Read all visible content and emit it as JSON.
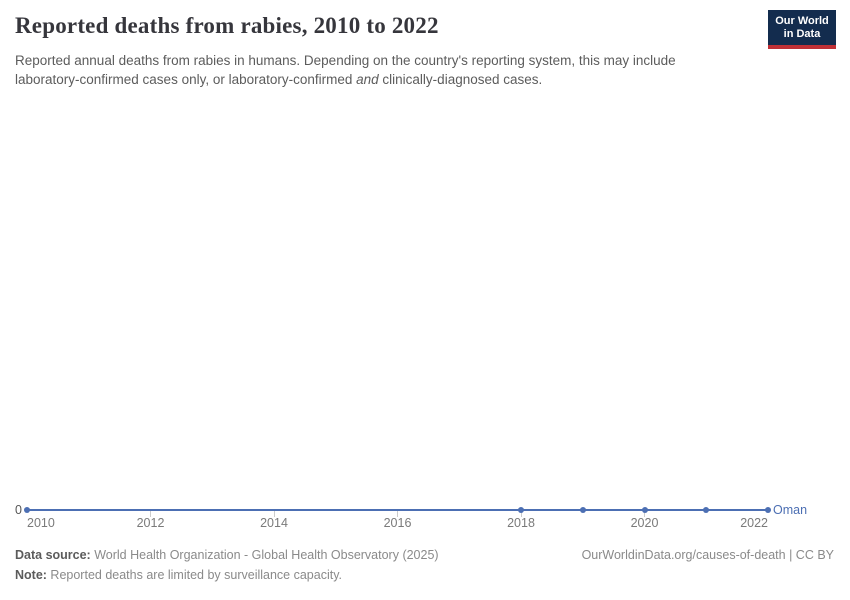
{
  "header": {
    "title": "Reported deaths from rabies, 2010 to 2022",
    "subtitle_line1": "Reported annual deaths from rabies in humans. Depending on the country's reporting system, this may include",
    "subtitle_line2_pre": "laboratory-confirmed cases only, or laboratory-confirmed ",
    "subtitle_line2_italic": "and",
    "subtitle_line2_post": " clinically-diagnosed cases.",
    "logo": {
      "line1": "Our World",
      "line2": "in Data",
      "bg_color": "#132c4e",
      "stripe_color": "#bf3036"
    }
  },
  "chart_data": {
    "type": "line",
    "title": "Reported deaths from rabies, 2010 to 2022",
    "xlim": [
      2010,
      2022
    ],
    "x_ticks": [
      "2010",
      "2012",
      "2014",
      "2016",
      "2018",
      "2020",
      "2022"
    ],
    "y_tick_label": "0",
    "grid": false,
    "legend": "inline-end-label",
    "series": [
      {
        "name": "Oman",
        "color": "#4C6FB3",
        "points": [
          {
            "x": 2010,
            "y": 0
          },
          {
            "x": 2018,
            "y": 0
          },
          {
            "x": 2019,
            "y": 0
          },
          {
            "x": 2020,
            "y": 0
          },
          {
            "x": 2021,
            "y": 0
          },
          {
            "x": 2022,
            "y": 0
          }
        ]
      }
    ]
  },
  "footer": {
    "datasource_label": "Data source:",
    "datasource_text": " World Health Organization - Global Health Observatory (2025)",
    "rights_text": "OurWorldinData.org/causes-of-death | CC BY",
    "note_label": "Note:",
    "note_text": " Reported deaths are limited by surveillance capacity."
  }
}
